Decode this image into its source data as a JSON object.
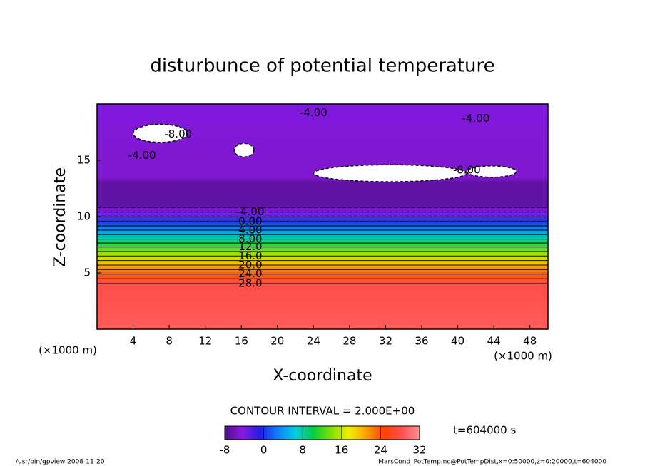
{
  "chart_data": {
    "type": "contour",
    "title": "disturbunce of potential temperature",
    "xlabel": "X-coordinate",
    "ylabel": "Z-coordinate",
    "unit_label": "(×1000 m)",
    "xlim": [
      0,
      50
    ],
    "xticks": [
      4,
      8,
      12,
      16,
      20,
      24,
      28,
      32,
      36,
      40,
      44,
      48
    ],
    "ylim": [
      0,
      20
    ],
    "yticks": [
      5,
      10,
      15
    ],
    "profile": {
      "z": [
        0,
        4.05,
        4.9,
        5.7,
        6.5,
        7.3,
        8.0,
        8.8,
        9.55,
        10.4,
        11,
        13,
        13.5,
        16,
        20
      ],
      "values": [
        29,
        28,
        24,
        20,
        16,
        12,
        8,
        4,
        0,
        -4,
        -7,
        -7,
        -5,
        -5,
        -4
      ]
    },
    "contour_levels": [
      -8,
      -6,
      -4,
      -2,
      0,
      2,
      4,
      6,
      8,
      10,
      12,
      14,
      16,
      18,
      20,
      22,
      24,
      26,
      28
    ],
    "contour_labels": [
      {
        "x": 17,
        "z": 10.4,
        "value": -4,
        "label": "-4.00"
      },
      {
        "x": 17,
        "z": 9.55,
        "value": 0,
        "label": "0.00"
      },
      {
        "x": 17,
        "z": 8.8,
        "value": 4,
        "label": "4.00"
      },
      {
        "x": 17,
        "z": 8.0,
        "value": 8,
        "label": "8.00"
      },
      {
        "x": 17,
        "z": 7.3,
        "value": 12,
        "label": "12.0"
      },
      {
        "x": 17,
        "z": 6.5,
        "value": 16,
        "label": "16.0"
      },
      {
        "x": 17,
        "z": 5.7,
        "value": 20,
        "label": "20.0"
      },
      {
        "x": 17,
        "z": 4.9,
        "value": 24,
        "label": "24.0"
      },
      {
        "x": 17,
        "z": 4.05,
        "value": 28,
        "label": "28.0"
      },
      {
        "x": 9,
        "z": 17.3,
        "value": -8,
        "label": "-8.00"
      },
      {
        "x": 24,
        "z": 19.2,
        "value": -4,
        "label": "-4.00"
      },
      {
        "x": 42,
        "z": 18.7,
        "value": -4,
        "label": "-4.00"
      },
      {
        "x": 5,
        "z": 15.4,
        "value": -4,
        "label": "-4.00"
      },
      {
        "x": 41,
        "z": 14.1,
        "value": -8,
        "label": "-8.00"
      }
    ],
    "below_range_regions": [
      {
        "x": [
          4,
          10
        ],
        "z": [
          16.6,
          18.2
        ]
      },
      {
        "x": [
          15.2,
          17.4
        ],
        "z": [
          15.3,
          16.5
        ]
      },
      {
        "x": [
          24,
          41
        ],
        "z": [
          13.1,
          14.6
        ]
      },
      {
        "x": [
          41,
          46.5
        ],
        "z": [
          13.5,
          14.5
        ]
      }
    ],
    "colormap": [
      "#50108a",
      "#8a18e0",
      "#2020e0",
      "#1080ff",
      "#00d0e0",
      "#00d040",
      "#80e000",
      "#f0f000",
      "#ffa000",
      "#ff4000",
      "#ff5050",
      "#ff9090"
    ],
    "clim": [
      -8,
      32
    ],
    "colorbar_ticks": [
      -8,
      0,
      8,
      16,
      24,
      32
    ],
    "contour_interval_text": "CONTOUR INTERVAL = 2.000E+00",
    "time_text": "t=604000 s",
    "footer_left": "/usr/bin/gpview  2008-11-20",
    "footer_right": "MarsCond_PotTemp.nc@PotTempDist,x=0:50000,z=0:20000,t=604000"
  }
}
